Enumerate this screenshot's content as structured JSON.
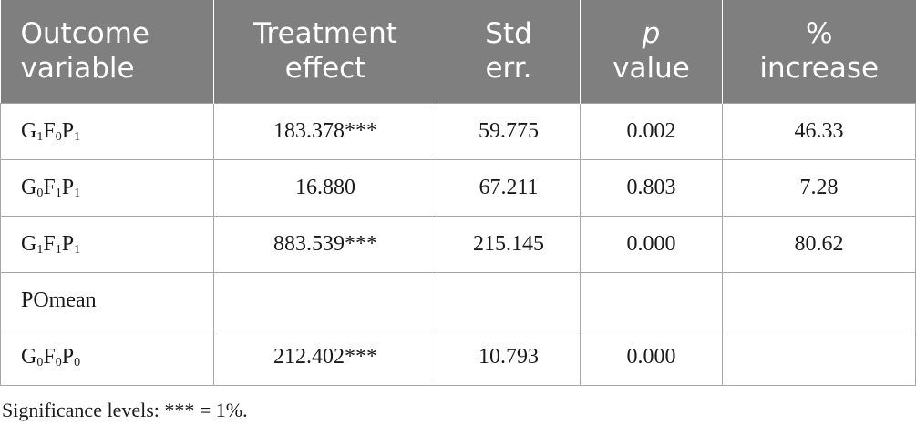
{
  "table": {
    "headers": {
      "outcome": [
        "Outcome",
        "variable"
      ],
      "treatment": [
        "Treatment",
        "effect"
      ],
      "stderr": [
        "Std",
        "err."
      ],
      "pvalue": [
        "p",
        "value"
      ],
      "increase": [
        "%",
        "increase"
      ]
    },
    "rows": [
      {
        "label": [
          [
            "G",
            "1"
          ],
          [
            "F",
            "0"
          ],
          [
            "P",
            "1"
          ]
        ],
        "treatment": "183.378***",
        "stderr": "59.775",
        "pvalue": "0.002",
        "increase": "46.33"
      },
      {
        "label": [
          [
            "G",
            "0"
          ],
          [
            "F",
            "1"
          ],
          [
            "P",
            "1"
          ]
        ],
        "treatment": "16.880",
        "stderr": "67.211",
        "pvalue": "0.803",
        "increase": "7.28"
      },
      {
        "label": [
          [
            "G",
            "1"
          ],
          [
            "F",
            "1"
          ],
          [
            "P",
            "1"
          ]
        ],
        "treatment": "883.539***",
        "stderr": "215.145",
        "pvalue": "0.000",
        "increase": "80.62"
      },
      {
        "label_text": "POmean",
        "treatment": "",
        "stderr": "",
        "pvalue": "",
        "increase": ""
      },
      {
        "label": [
          [
            "G",
            "0"
          ],
          [
            "F",
            "0"
          ],
          [
            "P",
            "0"
          ]
        ],
        "treatment": "212.402***",
        "stderr": "10.793",
        "pvalue": "0.000",
        "increase": ""
      }
    ]
  },
  "note": "Significance levels: *** = 1%."
}
